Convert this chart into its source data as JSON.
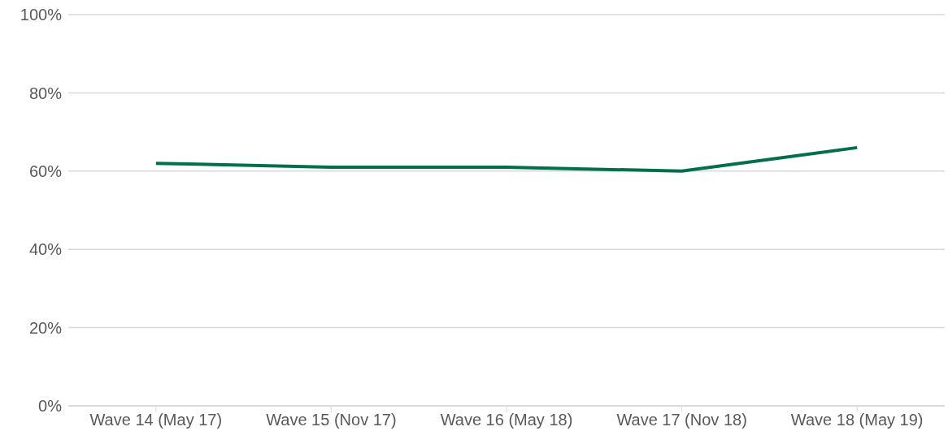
{
  "chart_data": {
    "type": "line",
    "categories": [
      "Wave 14 (May 17)",
      "Wave 15 (Nov 17)",
      "Wave 16 (May 18)",
      "Wave 17 (Nov 18)",
      "Wave 18 (May 19)"
    ],
    "series": [
      {
        "color": "#00704a",
        "values": [
          62,
          61,
          61,
          60,
          66
        ]
      }
    ],
    "ylim": [
      0,
      100
    ],
    "yticks": [
      {
        "value": 0,
        "label": "0%"
      },
      {
        "value": 20,
        "label": "20%"
      },
      {
        "value": 40,
        "label": "40%"
      },
      {
        "value": 60,
        "label": "60%"
      },
      {
        "value": 80,
        "label": "80%"
      },
      {
        "value": 100,
        "label": "100%"
      }
    ],
    "grid": "y",
    "marker": "none",
    "line_style": "solid"
  }
}
